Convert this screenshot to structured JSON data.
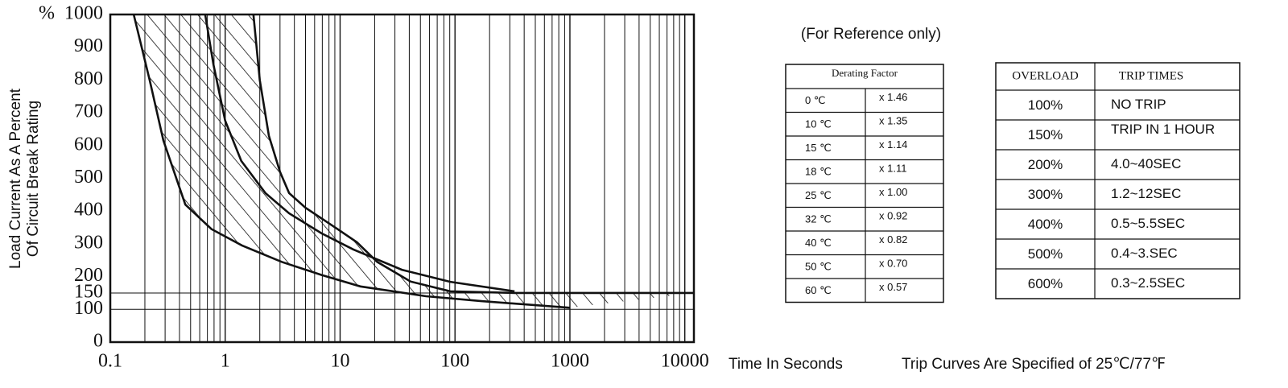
{
  "chart_data": {
    "type": "line",
    "y_unit_label": "%",
    "y_label": [
      "Load Current As A Percent",
      "Of Circuit Break Rating"
    ],
    "x_label": "Time In Seconds",
    "annotation": "Trip Curves Are Specified of 25℃/77℉",
    "log_x": true,
    "xlim": [
      0.1,
      12000
    ],
    "xticks": [
      0.1,
      1,
      10,
      100,
      1000,
      10000
    ],
    "x_minor_ticks": [
      0.2,
      0.3,
      0.4,
      0.5,
      0.6,
      0.7,
      0.8,
      0.9,
      2,
      3,
      4,
      5,
      6,
      7,
      8,
      9,
      20,
      30,
      40,
      50,
      60,
      70,
      80,
      90,
      200,
      300,
      400,
      500,
      600,
      700,
      800,
      900,
      2000,
      3000,
      4000,
      5000,
      6000,
      7000,
      8000,
      9000
    ],
    "ylim": [
      0,
      1000
    ],
    "yticks": [
      0,
      100,
      150,
      200,
      300,
      400,
      500,
      600,
      700,
      800,
      900,
      1000
    ],
    "y_grid": [
      100,
      150
    ],
    "hatch_between": [
      0,
      2
    ],
    "series": [
      {
        "color": "#111111",
        "x": [
          0.16,
          0.22,
          0.29,
          0.45,
          0.76,
          1.4,
          3.1,
          6.9,
          15,
          56,
          170,
          1000
        ],
        "values": [
          1000,
          800,
          615,
          420,
          345,
          295,
          245,
          205,
          170,
          140,
          125,
          105
        ]
      },
      {
        "color": "#111111",
        "x": [
          0.67,
          0.79,
          1.0,
          1.38,
          2.24,
          3.6,
          6.9,
          13,
          34.5,
          91,
          330
        ],
        "values": [
          1000,
          848,
          676,
          553,
          455,
          393,
          332,
          283,
          221,
          184,
          155
        ]
      },
      {
        "color": "#111111",
        "x": [
          1.76,
          2.0,
          2.4,
          3.0,
          3.6,
          5.0,
          9.5,
          14,
          21,
          41,
          91,
          330,
          12000
        ],
        "values": [
          1000,
          800,
          630,
          520,
          455,
          410,
          345,
          305,
          245,
          185,
          155,
          150,
          150
        ]
      }
    ]
  },
  "note": "(For Reference only)",
  "derating_table": {
    "header": "Derating Factor",
    "rows": [
      [
        "0 ℃",
        "x 1.46"
      ],
      [
        "10 ℃",
        "x 1.35"
      ],
      [
        "15 ℃",
        "x 1.14"
      ],
      [
        "18 ℃",
        "x 1.11"
      ],
      [
        "25 ℃",
        "x 1.00"
      ],
      [
        "32 ℃",
        "x 0.92"
      ],
      [
        "40 ℃",
        "x 0.82"
      ],
      [
        "50 ℃",
        "x 0.70"
      ],
      [
        "60 ℃",
        "x 0.57"
      ]
    ]
  },
  "trip_table": {
    "header": [
      "OVERLOAD",
      "TRIP TIMES"
    ],
    "rows": [
      [
        "100%",
        "NO TRIP"
      ],
      [
        "150%",
        "TRIP IN 1 HOUR"
      ],
      [
        "200%",
        "4.0~40SEC"
      ],
      [
        "300%",
        "1.2~12SEC"
      ],
      [
        "400%",
        "0.5~5.5SEC"
      ],
      [
        "500%",
        "0.4~3.SEC"
      ],
      [
        "600%",
        "0.3~2.5SEC"
      ]
    ]
  }
}
